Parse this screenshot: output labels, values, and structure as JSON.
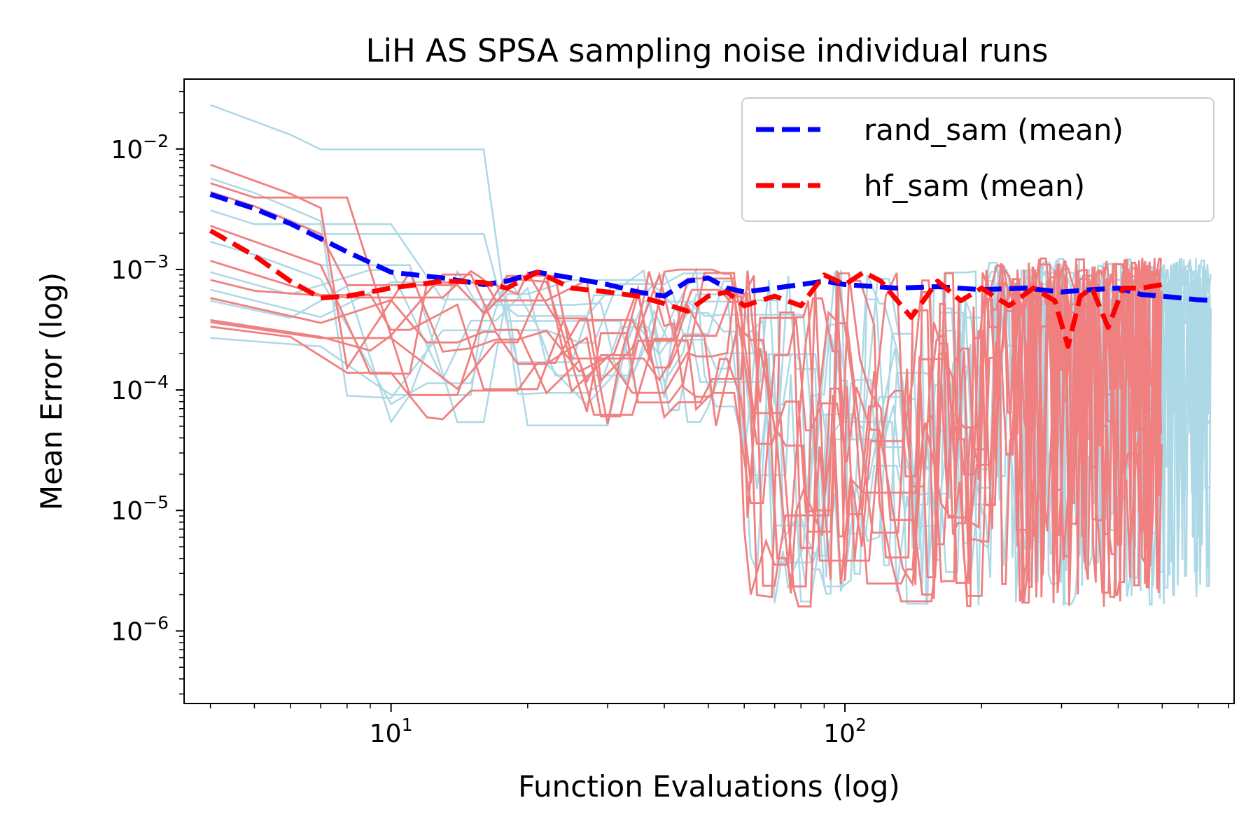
{
  "chart_data": {
    "type": "line",
    "title": "LiH AS SPSA sampling noise individual runs",
    "xlabel": "Function Evaluations (log)",
    "ylabel": "Mean Error (log)",
    "xscale": "log",
    "yscale": "log",
    "xlim": [
      3.5,
      720
    ],
    "ylim": [
      2.5e-07,
      0.038
    ],
    "grid": false,
    "legend_position": "top-right",
    "x_ticks": [
      {
        "base": "10",
        "exp": "1"
      },
      {
        "base": "10",
        "exp": "2"
      }
    ],
    "y_ticks": [
      {
        "base": "10",
        "exp": "−2",
        "value": 0.01
      },
      {
        "base": "10",
        "exp": "−3",
        "value": 0.001
      },
      {
        "base": "10",
        "exp": "−4",
        "value": 0.0001
      },
      {
        "base": "10",
        "exp": "−5",
        "value": 1e-05
      },
      {
        "base": "10",
        "exp": "−6",
        "value": 1e-06
      }
    ],
    "colors": {
      "rand_runs": "#add8e6",
      "hf_runs": "#f08080",
      "rand_mean": "#0000ff",
      "hf_mean": "#ff0000"
    },
    "series": [
      {
        "name": "rand_sam (mean)",
        "style": "dashed",
        "color": "#0000ff",
        "x": [
          4,
          5,
          6,
          7,
          8,
          10,
          13,
          16,
          18,
          21,
          25,
          30,
          35,
          40,
          45,
          50,
          55,
          60,
          70,
          80,
          90,
          100,
          130,
          160,
          200,
          250,
          300,
          350,
          400,
          450,
          500,
          550,
          600,
          650
        ],
        "values": [
          0.0042,
          0.0032,
          0.0024,
          0.0018,
          0.0014,
          0.00095,
          0.00085,
          0.00075,
          0.0008,
          0.00095,
          0.00085,
          0.00075,
          0.00065,
          0.0006,
          0.0008,
          0.00085,
          0.0007,
          0.00065,
          0.0007,
          0.00075,
          0.0008,
          0.00075,
          0.0007,
          0.00072,
          0.00068,
          0.0007,
          0.00065,
          0.00068,
          0.0007,
          0.00062,
          0.0006,
          0.00058,
          0.00056,
          0.00055
        ]
      },
      {
        "name": "hf_sam (mean)",
        "style": "dashed",
        "color": "#ff0000",
        "x": [
          4,
          5,
          6,
          7,
          8,
          10,
          13,
          16,
          18,
          21,
          25,
          30,
          35,
          40,
          45,
          50,
          55,
          60,
          70,
          80,
          90,
          100,
          110,
          120,
          140,
          160,
          180,
          200,
          230,
          260,
          290,
          310,
          330,
          350,
          380,
          410,
          450,
          500
        ],
        "values": [
          0.0021,
          0.0013,
          0.0008,
          0.00058,
          0.0006,
          0.0007,
          0.0008,
          0.00078,
          0.0007,
          0.00095,
          0.0007,
          0.00065,
          0.0006,
          0.00052,
          0.00045,
          0.0006,
          0.00065,
          0.0005,
          0.0006,
          0.0005,
          0.0009,
          0.00075,
          0.00095,
          0.0008,
          0.0004,
          0.0008,
          0.00055,
          0.0007,
          0.0005,
          0.0007,
          0.00055,
          0.00023,
          0.0006,
          0.0007,
          0.00033,
          0.0007,
          0.0007,
          0.00075
        ]
      }
    ]
  }
}
